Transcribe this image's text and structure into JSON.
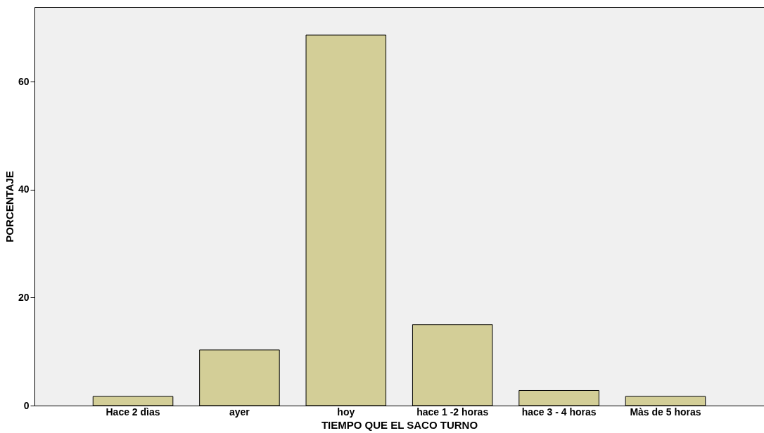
{
  "chart_data": {
    "type": "bar",
    "xlabel": "TIEMPO QUE EL SACO TURNO",
    "ylabel": "PORCENTAJE",
    "categories": [
      "Hace 2 dìas",
      "ayer",
      "hoy",
      "hace 1 -2 horas",
      "hace 3 - 4 horas",
      "Màs de 5 horas"
    ],
    "values": [
      1.7,
      10.3,
      68.6,
      15.0,
      2.8,
      1.7
    ],
    "color": "#d3ce97",
    "ylim": [
      0,
      73.8
    ],
    "yticks": [
      0,
      20,
      40,
      60
    ],
    "grid": false
  }
}
